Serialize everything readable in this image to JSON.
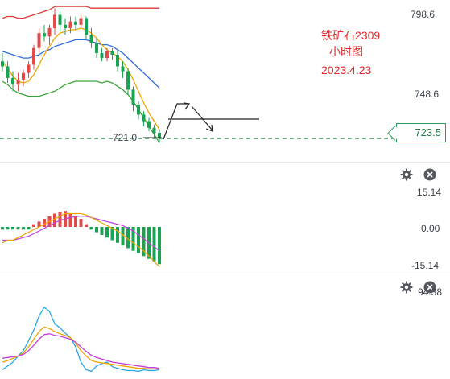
{
  "annotation": {
    "line1": "铁矿石2309",
    "line2": "小时图",
    "line3": "2023.4.23"
  },
  "price_axis": {
    "high": "798.6",
    "mid": "748.6",
    "current": "723.5",
    "low_marker": "721.0"
  },
  "macd_axis": {
    "top": "15.14",
    "zero": "0.00",
    "bottom": "-15.14"
  },
  "osc_axis": {
    "top": "94.38"
  },
  "icons": {
    "settings": "gear-icon",
    "close": "close-icon"
  },
  "colors": {
    "up": "#e34a4a",
    "down": "#1aa352",
    "upper_band": "#e03a3a",
    "mid_band": "#2f6fd8",
    "lower_band": "#3aa43a",
    "ma_fast": "#f0a400",
    "annotation": "#e0242a"
  },
  "chart_data": [
    {
      "type": "candlestick",
      "ylim": [
        712,
        805
      ],
      "candles": [
        {
          "o": 770,
          "h": 775,
          "l": 764,
          "c": 767
        },
        {
          "o": 767,
          "h": 770,
          "l": 757,
          "c": 760
        },
        {
          "o": 760,
          "h": 764,
          "l": 752,
          "c": 756
        },
        {
          "o": 756,
          "h": 763,
          "l": 752,
          "c": 759
        },
        {
          "o": 759,
          "h": 765,
          "l": 755,
          "c": 763
        },
        {
          "o": 763,
          "h": 770,
          "l": 760,
          "c": 768
        },
        {
          "o": 768,
          "h": 780,
          "l": 765,
          "c": 778
        },
        {
          "o": 778,
          "h": 790,
          "l": 775,
          "c": 787
        },
        {
          "o": 787,
          "h": 792,
          "l": 782,
          "c": 785
        },
        {
          "o": 785,
          "h": 792,
          "l": 780,
          "c": 790
        },
        {
          "o": 790,
          "h": 802,
          "l": 786,
          "c": 798
        },
        {
          "o": 798,
          "h": 800,
          "l": 788,
          "c": 792
        },
        {
          "o": 792,
          "h": 796,
          "l": 786,
          "c": 790
        },
        {
          "o": 790,
          "h": 797,
          "l": 787,
          "c": 794
        },
        {
          "o": 794,
          "h": 797,
          "l": 789,
          "c": 792
        },
        {
          "o": 792,
          "h": 798,
          "l": 790,
          "c": 796
        },
        {
          "o": 796,
          "h": 797,
          "l": 783,
          "c": 786
        },
        {
          "o": 786,
          "h": 790,
          "l": 778,
          "c": 781
        },
        {
          "o": 781,
          "h": 784,
          "l": 772,
          "c": 775
        },
        {
          "o": 775,
          "h": 778,
          "l": 770,
          "c": 772
        },
        {
          "o": 772,
          "h": 778,
          "l": 770,
          "c": 776
        },
        {
          "o": 776,
          "h": 778,
          "l": 771,
          "c": 774
        },
        {
          "o": 774,
          "h": 776,
          "l": 764,
          "c": 767
        },
        {
          "o": 767,
          "h": 770,
          "l": 760,
          "c": 764
        },
        {
          "o": 764,
          "h": 766,
          "l": 750,
          "c": 753
        },
        {
          "o": 753,
          "h": 755,
          "l": 740,
          "c": 744
        },
        {
          "o": 744,
          "h": 746,
          "l": 735,
          "c": 738
        },
        {
          "o": 738,
          "h": 740,
          "l": 731,
          "c": 734
        },
        {
          "o": 734,
          "h": 736,
          "l": 728,
          "c": 730
        },
        {
          "o": 730,
          "h": 732,
          "l": 724,
          "c": 727
        },
        {
          "o": 727,
          "h": 729,
          "l": 721,
          "c": 723.5
        }
      ],
      "upper_band": [
        796,
        797,
        797,
        796,
        796,
        797,
        798,
        799,
        800,
        801,
        803,
        803,
        803,
        803,
        803,
        803,
        803,
        802,
        802,
        802,
        802,
        802,
        802,
        802,
        802,
        802,
        802,
        802,
        802,
        802,
        802
      ],
      "mid_band": [
        776,
        775,
        774,
        773,
        772,
        772,
        773,
        774,
        776,
        777,
        779,
        780,
        781,
        782,
        783,
        783,
        783,
        782,
        781,
        780,
        780,
        779,
        777,
        775,
        772,
        769,
        766,
        763,
        760,
        757,
        754
      ],
      "lower_band": [
        758,
        756,
        753,
        751,
        750,
        749,
        749,
        749,
        750,
        751,
        752,
        754,
        756,
        757,
        758,
        758,
        758,
        758,
        758,
        757,
        758,
        757,
        755,
        753,
        750,
        746,
        741,
        736,
        731,
        726,
        721
      ],
      "ma_fast": [
        770,
        766,
        761,
        758,
        757,
        758,
        762,
        768,
        774,
        779,
        784,
        787,
        788,
        789,
        789,
        790,
        789,
        787,
        784,
        780,
        777,
        775,
        773,
        770,
        765,
        759,
        752,
        745,
        739,
        734,
        729
      ]
    },
    {
      "type": "bar",
      "title": "",
      "ylim": [
        -15.14,
        15.14
      ],
      "values": [
        -1,
        -1,
        -1,
        -1,
        -1,
        -1,
        1,
        2,
        3,
        4,
        5,
        5.5,
        6,
        5,
        4,
        3,
        1,
        -1,
        -2,
        -3,
        -4,
        -5,
        -6,
        -7,
        -8,
        -9,
        -10,
        -11,
        -12,
        -13,
        -14
      ],
      "dif": [
        -6,
        -5,
        -5,
        -4,
        -3,
        -2,
        -1,
        0,
        1,
        2,
        3,
        4,
        5,
        5,
        5,
        5,
        4.5,
        3.5,
        2.5,
        1.5,
        0.5,
        -0.5,
        -1.5,
        -3,
        -4.5,
        -6,
        -7.5,
        -9,
        -11,
        -13,
        -15
      ],
      "dea": [
        -5,
        -5,
        -5,
        -4.5,
        -4,
        -3.5,
        -2.5,
        -1.5,
        -0.5,
        0.5,
        1.5,
        2.5,
        3,
        3.5,
        4,
        4,
        4,
        3.5,
        3,
        2.5,
        2,
        1.5,
        1,
        0.5,
        -0.5,
        -1.5,
        -3,
        -4.5,
        -6,
        -7.5,
        -9
      ]
    },
    {
      "type": "line",
      "ylim": [
        0,
        120
      ],
      "series": [
        {
          "values": [
            10,
            15,
            20,
            28,
            35,
            48,
            62,
            80,
            92,
            86,
            70,
            65,
            58,
            52,
            40,
            20,
            10,
            8,
            15,
            18,
            20,
            14,
            12,
            10,
            9,
            9,
            8,
            10,
            9,
            9,
            10
          ]
        },
        {
          "values": [
            20,
            22,
            25,
            28,
            32,
            40,
            50,
            60,
            66,
            64,
            60,
            57,
            55,
            52,
            45,
            35,
            28,
            22,
            20,
            19,
            18,
            17,
            16,
            15,
            14,
            13,
            12,
            12,
            11,
            11,
            11
          ]
        },
        {
          "values": [
            25,
            26,
            27,
            28,
            30,
            35,
            42,
            50,
            56,
            57,
            55,
            54,
            52,
            50,
            46,
            40,
            34,
            29,
            26,
            24,
            22,
            20,
            19,
            18,
            17,
            16,
            15,
            14,
            13,
            13,
            12
          ]
        }
      ]
    }
  ]
}
